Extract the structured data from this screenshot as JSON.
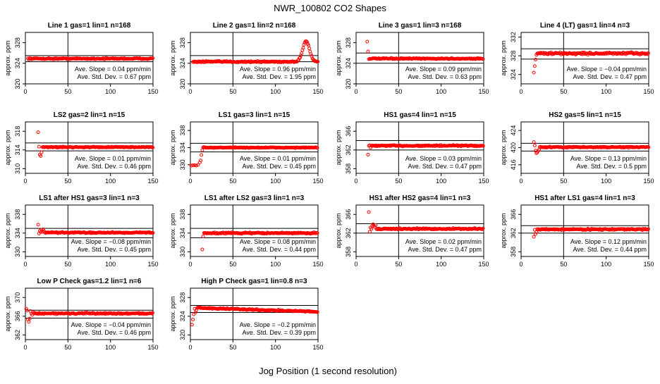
{
  "page": {
    "title": "NWR_100802   CO2 Shapes",
    "xlabel": "Jog Position (1 second resolution)"
  },
  "colors": {
    "points": "#ff0000",
    "axes": "#000000",
    "text": "#000000"
  },
  "chart_data": [
    {
      "type": "scatter",
      "title": "Line 1 gas=1 lin=1 n=168",
      "ylabel": "approx. ppm",
      "xlim": [
        0,
        150
      ],
      "xticks": [
        0,
        50,
        100,
        150
      ],
      "ylim": [
        320,
        330
      ],
      "yticks": [
        320,
        324,
        328
      ],
      "hlines": [
        325.5,
        324.3
      ],
      "vline": 50,
      "slope_text": "Ave. Slope =  0.04  ppm/min",
      "std_text": "Ave. Std. Dev. =  0.67  ppm",
      "shape": {
        "x_start": 3,
        "base": 324.9,
        "noise": 0.18,
        "early": []
      }
    },
    {
      "type": "scatter",
      "title": "Line 2 gas=1 lin=2 n=168",
      "ylabel": "approx. ppm",
      "xlim": [
        0,
        150
      ],
      "xticks": [
        0,
        50,
        100,
        150
      ],
      "ylim": [
        320,
        330
      ],
      "yticks": [
        320,
        324,
        328
      ],
      "hlines": [
        325.5,
        324.3
      ],
      "vline": 50,
      "slope_text": "Ave. Slope =  0.96  ppm/min",
      "std_text": "Ave. Std. Dev. =  1.95  ppm",
      "shape": {
        "x_start": 3,
        "base": 324.3,
        "noise": 0.2,
        "early": [],
        "bump": {
          "center": 136,
          "height": 4.0,
          "width": 4
        }
      }
    },
    {
      "type": "scatter",
      "title": "Line 3 gas=1 lin=3 n=168",
      "ylabel": "approx. ppm",
      "xlim": [
        0,
        150
      ],
      "xticks": [
        0,
        50,
        100,
        150
      ],
      "ylim": [
        320,
        330
      ],
      "yticks": [
        320,
        324,
        328
      ],
      "hlines": [
        326,
        324
      ],
      "vline": 50,
      "slope_text": "Ave. Slope =  0.09  ppm/min",
      "std_text": "Ave. Std. Dev. =  0.63  ppm",
      "shape": {
        "x_start": 15,
        "base": 324.9,
        "noise": 0.15,
        "early": [
          [
            13,
            328.2
          ],
          [
            14,
            326.3
          ]
        ]
      }
    },
    {
      "type": "scatter",
      "title": "Line 4 (LT) gas=1 lin=4 n=3",
      "ylabel": "approx. ppm",
      "xlim": [
        0,
        150
      ],
      "xticks": [
        0,
        50,
        100,
        150
      ],
      "ylim": [
        322,
        333
      ],
      "yticks": [
        324,
        328,
        332
      ],
      "hlines": [
        329.5,
        327.3
      ],
      "vline": 50,
      "slope_text": "Ave. Slope =  −0.04  ppm/min",
      "std_text": "Ave. Std. Dev. =  0.47  ppm",
      "shape": {
        "x_start": 19,
        "base": 328.5,
        "noise": 0.35,
        "early": [
          [
            15,
            324.4
          ],
          [
            16,
            325.8
          ],
          [
            17,
            327.2
          ],
          [
            18,
            328.2
          ]
        ]
      }
    },
    {
      "type": "scatter",
      "title": "LS2 gas=2 lin=1 n=15",
      "ylabel": "approx. ppm",
      "xlim": [
        0,
        150
      ],
      "xticks": [
        0,
        50,
        100,
        150
      ],
      "ylim": [
        309,
        320
      ],
      "yticks": [
        310,
        314,
        318
      ],
      "hlines": [
        315.5,
        313.8
      ],
      "vline": 50,
      "slope_text": "Ave. Slope =  0.01  ppm/min",
      "std_text": "Ave. Std. Dev. =  0.46  ppm",
      "shape": {
        "x_start": 21,
        "base": 314.6,
        "noise": 0.15,
        "early": [
          [
            15,
            317.8
          ],
          [
            16,
            314.7
          ],
          [
            17,
            313.0
          ],
          [
            18,
            312.7
          ],
          [
            19,
            313.5
          ],
          [
            20,
            314.6
          ]
        ]
      }
    },
    {
      "type": "scatter",
      "title": "LS1 gas=3 lin=1 n=15",
      "ylabel": "approx. ppm",
      "xlim": [
        0,
        150
      ],
      "xticks": [
        0,
        50,
        100,
        150
      ],
      "ylim": [
        328,
        340
      ],
      "yticks": [
        330,
        334,
        338
      ],
      "hlines": [
        335,
        333
      ],
      "vline": 50,
      "slope_text": "Ave. Slope =  0.01  ppm/min",
      "std_text": "Ave. Std. Dev. =  0.45  ppm",
      "shape": {
        "x_start": 15,
        "base": 334,
        "noise": 0.15,
        "early": [
          [
            1,
            329.8
          ],
          [
            3,
            329.9
          ],
          [
            5,
            329.9
          ],
          [
            7,
            329.8
          ],
          [
            9,
            330
          ],
          [
            11,
            330.5
          ],
          [
            12,
            331
          ],
          [
            13,
            332.3
          ],
          [
            14,
            333.4
          ]
        ]
      }
    },
    {
      "type": "scatter",
      "title": "HS1 gas=4 lin=1 n=15",
      "ylabel": "approx. ppm",
      "xlim": [
        0,
        150
      ],
      "xticks": [
        0,
        50,
        100,
        150
      ],
      "ylim": [
        357,
        368
      ],
      "yticks": [
        358,
        362,
        366
      ],
      "hlines": [
        364,
        362
      ],
      "vline": 50,
      "slope_text": "Ave. Slope =  0.03  ppm/min",
      "std_text": "Ave. Std. Dev. =  0.47  ppm",
      "shape": {
        "x_start": 18,
        "base": 362.9,
        "noise": 0.2,
        "early": [
          [
            14,
            361
          ],
          [
            15,
            362.9
          ],
          [
            16,
            363
          ],
          [
            17,
            362.5
          ]
        ]
      }
    },
    {
      "type": "scatter",
      "title": "HS2 gas=5 lin=1 n=15",
      "ylabel": "approx. ppm",
      "xlim": [
        0,
        150
      ],
      "xticks": [
        0,
        50,
        100,
        150
      ],
      "ylim": [
        414,
        426
      ],
      "yticks": [
        416,
        420,
        424
      ],
      "hlines": [
        421,
        419.2
      ],
      "vline": 50,
      "slope_text": "Ave. Slope =  0.13  ppm/min",
      "std_text": "Ave. Std. Dev. =  0.5  ppm",
      "shape": {
        "x_start": 22,
        "base": 420.1,
        "noise": 0.18,
        "early": [
          [
            15,
            421.3
          ],
          [
            16,
            420.5
          ],
          [
            17,
            419.3
          ],
          [
            18,
            418.7
          ],
          [
            19,
            418.9
          ],
          [
            20,
            419.2
          ],
          [
            21,
            419.5
          ]
        ]
      }
    },
    {
      "type": "scatter",
      "title": "LS1 after HS1 gas=3 lin=1 n=3",
      "ylabel": "approx. ppm",
      "xlim": [
        0,
        150
      ],
      "xticks": [
        0,
        50,
        100,
        150
      ],
      "ylim": [
        329,
        340
      ],
      "yticks": [
        330,
        334,
        338
      ],
      "hlines": [
        335,
        333
      ],
      "vline": 50,
      "slope_text": "Ave. Slope =  −0.08  ppm/min",
      "std_text": "Ave. Std. Dev. =  0.45  ppm",
      "shape": {
        "x_start": 23,
        "base": 334.1,
        "noise": 0.18,
        "early": [
          [
            15,
            335.8
          ],
          [
            16,
            333.9
          ],
          [
            17,
            334.5
          ],
          [
            18,
            334.2
          ],
          [
            19,
            334.7
          ],
          [
            20,
            334.3
          ],
          [
            21,
            334.8
          ],
          [
            22,
            334.4
          ]
        ]
      }
    },
    {
      "type": "scatter",
      "title": "LS1 after LS2 gas=3 lin=1 n=3",
      "ylabel": "approx. ppm",
      "xlim": [
        0,
        150
      ],
      "xticks": [
        0,
        50,
        100,
        150
      ],
      "ylim": [
        329,
        340
      ],
      "yticks": [
        330,
        334,
        338
      ],
      "hlines": [
        335,
        333
      ],
      "vline": 50,
      "slope_text": "Ave. Slope =  0.08  ppm/min",
      "std_text": "Ave. Std. Dev. =  0.44  ppm",
      "shape": {
        "x_start": 16,
        "base": 334.0,
        "noise": 0.2,
        "early": [
          [
            14,
            330.5
          ],
          [
            15,
            333.3
          ]
        ]
      }
    },
    {
      "type": "scatter",
      "title": "HS1 after HS2 gas=4 lin=1 n=3",
      "ylabel": "approx. ppm",
      "xlim": [
        0,
        150
      ],
      "xticks": [
        0,
        50,
        100,
        150
      ],
      "ylim": [
        357,
        368
      ],
      "yticks": [
        358,
        362,
        366
      ],
      "hlines": [
        364,
        362
      ],
      "vline": 50,
      "slope_text": "Ave. Slope =  0.02  ppm/min",
      "std_text": "Ave. Std. Dev. =  0.47  ppm",
      "shape": {
        "x_start": 24,
        "base": 362.9,
        "noise": 0.2,
        "early": [
          [
            15,
            366.5
          ],
          [
            16,
            362.3
          ],
          [
            17,
            363.2
          ],
          [
            18,
            362.9
          ],
          [
            19,
            363.5
          ],
          [
            20,
            363.9
          ],
          [
            21,
            363.6
          ],
          [
            22,
            363.3
          ],
          [
            23,
            363.7
          ]
        ]
      }
    },
    {
      "type": "scatter",
      "title": "HS1 after LS1 gas=4 lin=1 n=3",
      "ylabel": "approx. ppm",
      "xlim": [
        0,
        150
      ],
      "xticks": [
        0,
        50,
        100,
        150
      ],
      "ylim": [
        357,
        368
      ],
      "yticks": [
        358,
        362,
        366
      ],
      "hlines": [
        363.6,
        362
      ],
      "vline": 50,
      "slope_text": "Ave. Slope =  0.12  ppm/min",
      "std_text": "Ave. Std. Dev. =  0.44  ppm",
      "shape": {
        "x_start": 19,
        "base": 362.8,
        "noise": 0.2,
        "early": [
          [
            15,
            361.2
          ],
          [
            16,
            362.7
          ],
          [
            17,
            361.8
          ],
          [
            18,
            362.2
          ]
        ]
      }
    },
    {
      "type": "scatter",
      "title": "Low P Check gas=1.2 lin=1 n=6",
      "ylabel": "approx. ppm",
      "xlim": [
        0,
        150
      ],
      "xticks": [
        0,
        50,
        100,
        150
      ],
      "ylim": [
        361,
        372
      ],
      "yticks": [
        362,
        366,
        370
      ],
      "hlines": [
        367.3,
        365.6
      ],
      "vline": 50,
      "slope_text": "Ave. Slope =  −0.04  ppm/min",
      "std_text": "Ave. Std. Dev. =  0.46  ppm",
      "shape": {
        "x_start": 10,
        "base": 366.6,
        "noise": 0.2,
        "early": [
          [
            1,
            367.6
          ],
          [
            2,
            367.2
          ],
          [
            3,
            365.3
          ],
          [
            4,
            364.8
          ],
          [
            5,
            365.5
          ],
          [
            6,
            367.1
          ],
          [
            7,
            366.6
          ],
          [
            8,
            366.3
          ],
          [
            9,
            366.9
          ]
        ]
      }
    },
    {
      "type": "scatter",
      "title": "High P Check gas=1 lin=0.8 n=3",
      "ylabel": "approx. ppm",
      "xlim": [
        0,
        150
      ],
      "xticks": [
        0,
        50,
        100,
        150
      ],
      "ylim": [
        319,
        330
      ],
      "yticks": [
        320,
        324,
        328
      ],
      "hlines": [
        326.3,
        324.8
      ],
      "vline": 50,
      "slope_text": "Ave. Slope =  −0.2  ppm/min",
      "std_text": "Ave. Std. Dev. =  0.39  ppm",
      "shape": {
        "x_start": 8,
        "base": 325.8,
        "noise": 0.2,
        "early": [
          [
            2,
            322.2
          ],
          [
            3,
            323.3
          ],
          [
            4,
            324.4
          ],
          [
            5,
            325.6
          ],
          [
            6,
            324.8
          ],
          [
            7,
            325.3
          ]
        ],
        "trend": -0.006
      }
    }
  ]
}
